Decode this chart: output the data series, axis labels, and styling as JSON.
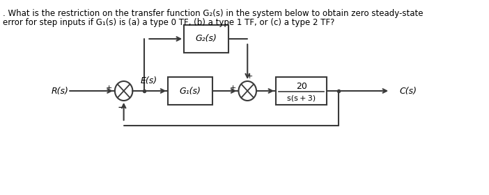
{
  "question_line1": ". What is the restriction on the transfer function G₂(s) in the system below to obtain zero steady-state",
  "question_line2": "error for step inputs if G₁(s) is (a) a type 0 TF, (b) a type 1 TF, or (c) a type 2 TF?",
  "bg_color": "#ffffff",
  "text_color": "#000000",
  "blue_color": "#1a6faf",
  "diagram": {
    "R_label": "R(s)",
    "E_label": "E(s)",
    "C_label": "C(s)",
    "G1_label": "G₁(s)",
    "G2_label": "G₂(s)",
    "plant_num": "20",
    "plant_den": "s(s + 3)",
    "sum1_signs": [
      "+",
      "−"
    ],
    "sum2_signs": [
      "+",
      "+"
    ]
  }
}
